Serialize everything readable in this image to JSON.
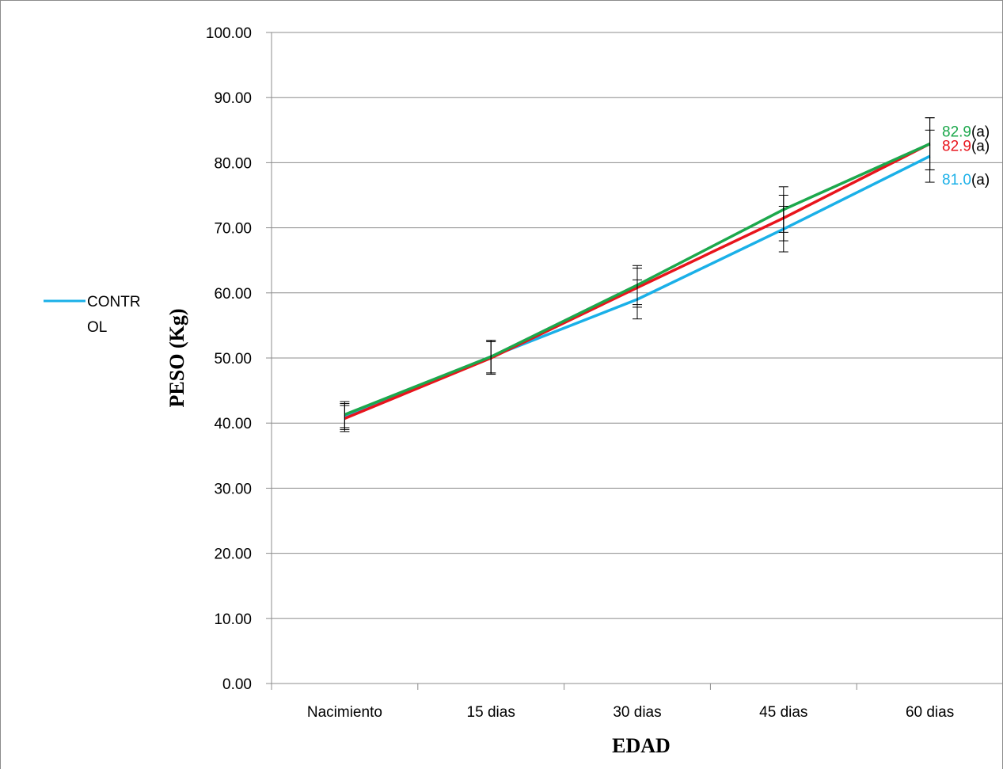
{
  "colors": {
    "control": "#1ab0e8",
    "red": "#e8141c",
    "green": "#1ca84c",
    "axis": "#8c8c8c",
    "grid": "#8c8c8c",
    "errorbar": "#000000"
  },
  "chart_data": {
    "type": "line",
    "title": "",
    "xlabel": "EDAD",
    "ylabel": "PESO (Kg)",
    "ylim": [
      0,
      100
    ],
    "y_ticks": [
      "0.00",
      "10.00",
      "20.00",
      "30.00",
      "40.00",
      "50.00",
      "60.00",
      "70.00",
      "80.00",
      "90.00",
      "100.00"
    ],
    "categories": [
      "Nacimiento",
      "15 dias",
      "30 dias",
      "45 dias",
      "60 dias"
    ],
    "grid": true,
    "legend": {
      "position": "left",
      "entries": [
        "CONTR",
        "OL"
      ]
    },
    "series": [
      {
        "name": "CONTROL",
        "color_key": "control",
        "values": [
          41.0,
          50.2,
          59.0,
          69.8,
          81.0
        ],
        "errors": [
          2.0,
          2.5,
          3.0,
          3.5,
          4.0
        ]
      },
      {
        "color_key": "red",
        "values": [
          40.7,
          50.0,
          60.8,
          71.5,
          82.9
        ],
        "errors": [
          2.0,
          2.5,
          3.0,
          3.5,
          4.0
        ]
      },
      {
        "color_key": "green",
        "values": [
          41.3,
          50.2,
          61.2,
          72.8,
          82.9
        ],
        "errors": [
          2.0,
          2.5,
          3.0,
          3.5,
          4.0
        ]
      }
    ],
    "end_labels": [
      {
        "color_key": "green",
        "value": "82.9",
        "suffix": "(a)"
      },
      {
        "color_key": "red",
        "value": "82.9",
        "suffix": "(a)"
      },
      {
        "color_key": "control",
        "value": "81.0",
        "suffix": "(a)"
      }
    ]
  }
}
